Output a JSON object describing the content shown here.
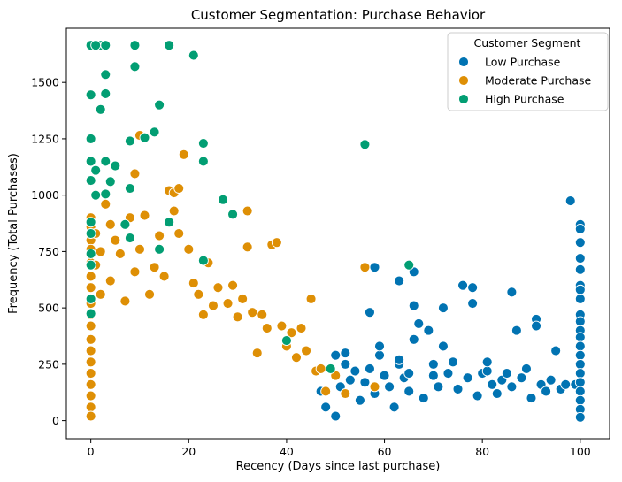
{
  "chart_data": {
    "type": "scatter",
    "title": "Customer Segmentation: Purchase Behavior",
    "xlabel": "Recency (Days since last purchase)",
    "ylabel": "Frequency (Total Purchases)",
    "xlim": [
      -5,
      106
    ],
    "ylim": [
      -80,
      1740
    ],
    "xticks": [
      0,
      20,
      40,
      60,
      80,
      100
    ],
    "yticks": [
      0,
      250,
      500,
      750,
      1000,
      1250,
      1500
    ],
    "grid": false,
    "legend": {
      "title": "Customer Segment",
      "placement": "top-right"
    },
    "series": [
      {
        "name": "Low Purchase",
        "color": "#0173b2",
        "points": [
          [
            47,
            130
          ],
          [
            48,
            60
          ],
          [
            50,
            20
          ],
          [
            50,
            290
          ],
          [
            51,
            150
          ],
          [
            52,
            250
          ],
          [
            52,
            300
          ],
          [
            53,
            180
          ],
          [
            54,
            220
          ],
          [
            55,
            90
          ],
          [
            56,
            170
          ],
          [
            57,
            230
          ],
          [
            57,
            480
          ],
          [
            58,
            120
          ],
          [
            58,
            680
          ],
          [
            59,
            290
          ],
          [
            59,
            330
          ],
          [
            60,
            200
          ],
          [
            61,
            150
          ],
          [
            62,
            60
          ],
          [
            63,
            250
          ],
          [
            63,
            270
          ],
          [
            63,
            620
          ],
          [
            64,
            190
          ],
          [
            65,
            210
          ],
          [
            65,
            130
          ],
          [
            66,
            660
          ],
          [
            66,
            510
          ],
          [
            66,
            360
          ],
          [
            67,
            430
          ],
          [
            68,
            100
          ],
          [
            69,
            400
          ],
          [
            70,
            200
          ],
          [
            70,
            250
          ],
          [
            71,
            150
          ],
          [
            72,
            500
          ],
          [
            72,
            330
          ],
          [
            73,
            210
          ],
          [
            74,
            260
          ],
          [
            75,
            140
          ],
          [
            76,
            600
          ],
          [
            77,
            190
          ],
          [
            78,
            520
          ],
          [
            78,
            590
          ],
          [
            79,
            110
          ],
          [
            80,
            210
          ],
          [
            81,
            220
          ],
          [
            81,
            260
          ],
          [
            82,
            160
          ],
          [
            83,
            120
          ],
          [
            84,
            180
          ],
          [
            85,
            210
          ],
          [
            86,
            570
          ],
          [
            86,
            150
          ],
          [
            87,
            400
          ],
          [
            88,
            190
          ],
          [
            89,
            230
          ],
          [
            90,
            100
          ],
          [
            91,
            450
          ],
          [
            91,
            420
          ],
          [
            92,
            160
          ],
          [
            93,
            130
          ],
          [
            94,
            180
          ],
          [
            95,
            310
          ],
          [
            96,
            140
          ],
          [
            97,
            160
          ],
          [
            98,
            975
          ],
          [
            99,
            160
          ],
          [
            100,
            870
          ],
          [
            100,
            850
          ],
          [
            100,
            790
          ],
          [
            100,
            720
          ],
          [
            100,
            670
          ],
          [
            100,
            600
          ],
          [
            100,
            580
          ],
          [
            100,
            540
          ],
          [
            100,
            470
          ],
          [
            100,
            440
          ],
          [
            100,
            400
          ],
          [
            100,
            370
          ],
          [
            100,
            330
          ],
          [
            100,
            290
          ],
          [
            100,
            250
          ],
          [
            100,
            210
          ],
          [
            100,
            170
          ],
          [
            100,
            130
          ],
          [
            100,
            90
          ],
          [
            100,
            50
          ],
          [
            100,
            15
          ]
        ]
      },
      {
        "name": "Moderate Purchase",
        "color": "#de8f05",
        "points": [
          [
            0,
            900
          ],
          [
            0,
            860
          ],
          [
            0,
            800
          ],
          [
            0,
            760
          ],
          [
            0,
            700
          ],
          [
            0,
            640
          ],
          [
            0,
            590
          ],
          [
            0,
            520
          ],
          [
            0,
            470
          ],
          [
            0,
            420
          ],
          [
            0,
            360
          ],
          [
            0,
            310
          ],
          [
            0,
            260
          ],
          [
            0,
            210
          ],
          [
            0,
            160
          ],
          [
            0,
            110
          ],
          [
            0,
            60
          ],
          [
            0,
            20
          ],
          [
            1,
            830
          ],
          [
            1,
            690
          ],
          [
            2,
            750
          ],
          [
            2,
            560
          ],
          [
            3,
            960
          ],
          [
            4,
            870
          ],
          [
            4,
            620
          ],
          [
            5,
            800
          ],
          [
            6,
            740
          ],
          [
            7,
            530
          ],
          [
            8,
            900
          ],
          [
            9,
            1095
          ],
          [
            9,
            660
          ],
          [
            10,
            1265
          ],
          [
            10,
            760
          ],
          [
            11,
            910
          ],
          [
            12,
            560
          ],
          [
            13,
            680
          ],
          [
            14,
            820
          ],
          [
            15,
            640
          ],
          [
            16,
            1020
          ],
          [
            17,
            1010
          ],
          [
            17,
            930
          ],
          [
            18,
            1030
          ],
          [
            18,
            830
          ],
          [
            19,
            1180
          ],
          [
            20,
            760
          ],
          [
            21,
            610
          ],
          [
            22,
            560
          ],
          [
            23,
            470
          ],
          [
            24,
            700
          ],
          [
            25,
            510
          ],
          [
            26,
            590
          ],
          [
            28,
            520
          ],
          [
            29,
            600
          ],
          [
            30,
            460
          ],
          [
            31,
            540
          ],
          [
            32,
            930
          ],
          [
            32,
            770
          ],
          [
            33,
            480
          ],
          [
            34,
            300
          ],
          [
            35,
            470
          ],
          [
            36,
            410
          ],
          [
            37,
            780
          ],
          [
            38,
            790
          ],
          [
            39,
            420
          ],
          [
            40,
            330
          ],
          [
            41,
            390
          ],
          [
            42,
            280
          ],
          [
            43,
            410
          ],
          [
            44,
            310
          ],
          [
            45,
            540
          ],
          [
            46,
            220
          ],
          [
            47,
            230
          ],
          [
            48,
            130
          ],
          [
            50,
            200
          ],
          [
            52,
            120
          ],
          [
            56,
            680
          ],
          [
            58,
            150
          ]
        ]
      },
      {
        "name": "High Purchase",
        "color": "#029e73",
        "points": [
          [
            0,
            1665
          ],
          [
            2,
            1665
          ],
          [
            3,
            1665
          ],
          [
            1,
            1665
          ],
          [
            0,
            1445
          ],
          [
            0,
            1250
          ],
          [
            0,
            1150
          ],
          [
            0,
            1065
          ],
          [
            0,
            880
          ],
          [
            0,
            830
          ],
          [
            0,
            740
          ],
          [
            0,
            690
          ],
          [
            0,
            540
          ],
          [
            0,
            475
          ],
          [
            1,
            1110
          ],
          [
            1,
            1000
          ],
          [
            2,
            1380
          ],
          [
            3,
            1535
          ],
          [
            3,
            1450
          ],
          [
            3,
            1150
          ],
          [
            3,
            1005
          ],
          [
            4,
            1060
          ],
          [
            5,
            1130
          ],
          [
            7,
            870
          ],
          [
            8,
            1240
          ],
          [
            8,
            1030
          ],
          [
            8,
            810
          ],
          [
            9,
            1665
          ],
          [
            9,
            1570
          ],
          [
            11,
            1255
          ],
          [
            13,
            1280
          ],
          [
            14,
            1400
          ],
          [
            14,
            760
          ],
          [
            16,
            1665
          ],
          [
            16,
            880
          ],
          [
            21,
            1620
          ],
          [
            23,
            1230
          ],
          [
            23,
            1150
          ],
          [
            23,
            710
          ],
          [
            27,
            980
          ],
          [
            29,
            915
          ],
          [
            40,
            355
          ],
          [
            56,
            1225
          ],
          [
            65,
            690
          ],
          [
            49,
            230
          ]
        ]
      }
    ]
  }
}
